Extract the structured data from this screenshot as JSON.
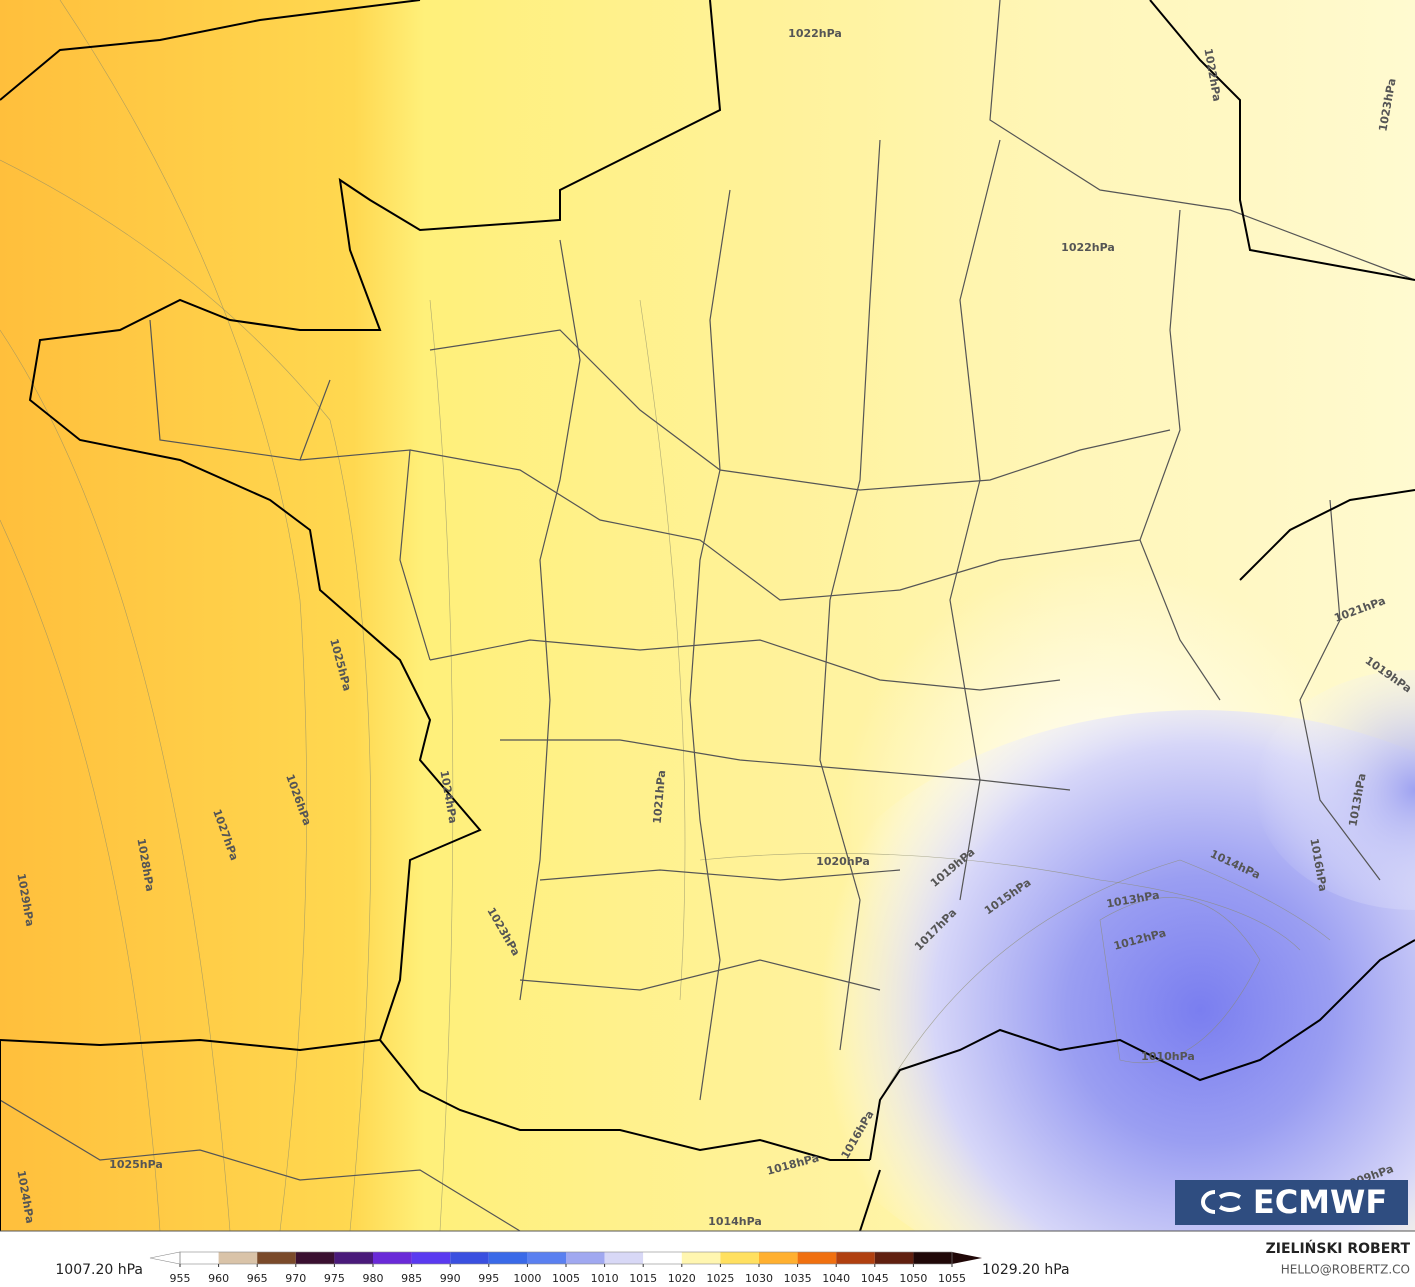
{
  "isobars": [
    "1022hPa",
    "1022hPa",
    "1023hPa",
    "1022hPa",
    "1021hPa",
    "1019hPa",
    "1013hPa",
    "1016hPa",
    "1014hPa",
    "1013hPa",
    "1012hPa",
    "1010hPa",
    "1009hPa",
    "1025hPa",
    "1024hPa",
    "1026hPa",
    "1027hPa",
    "1028hPa",
    "1029hPa",
    "1021hPa",
    "1020hPa",
    "1019hPa",
    "1015hPa",
    "1017hPa",
    "1023hPa",
    "1025hPa",
    "1024hPa",
    "1016hPa",
    "1018hPa",
    "1014hPa"
  ],
  "colorbar": {
    "min_label": "1007.20 hPa",
    "max_label": "1029.20 hPa",
    "ticks": [
      955,
      960,
      965,
      970,
      975,
      980,
      985,
      990,
      995,
      1000,
      1005,
      1010,
      1015,
      1020,
      1025,
      1030,
      1035,
      1040,
      1045,
      1050,
      1055
    ],
    "colors": [
      "#ffffff",
      "#d9c3a8",
      "#7a4a2a",
      "#3a1030",
      "#4a1a7a",
      "#6a2ad8",
      "#5a3af0",
      "#3a50e0",
      "#3a6ae8",
      "#5a80f0",
      "#a0a8f0",
      "#d8d8f6",
      "#ffffff",
      "#fff6b0",
      "#ffe060",
      "#ffb030",
      "#f07010",
      "#b04010",
      "#602010",
      "#200808"
    ]
  },
  "logo": "ECMWF",
  "author": "ZIELIŃSKI ROBERT",
  "email": "HELLO@ROBERTZ.CO"
}
